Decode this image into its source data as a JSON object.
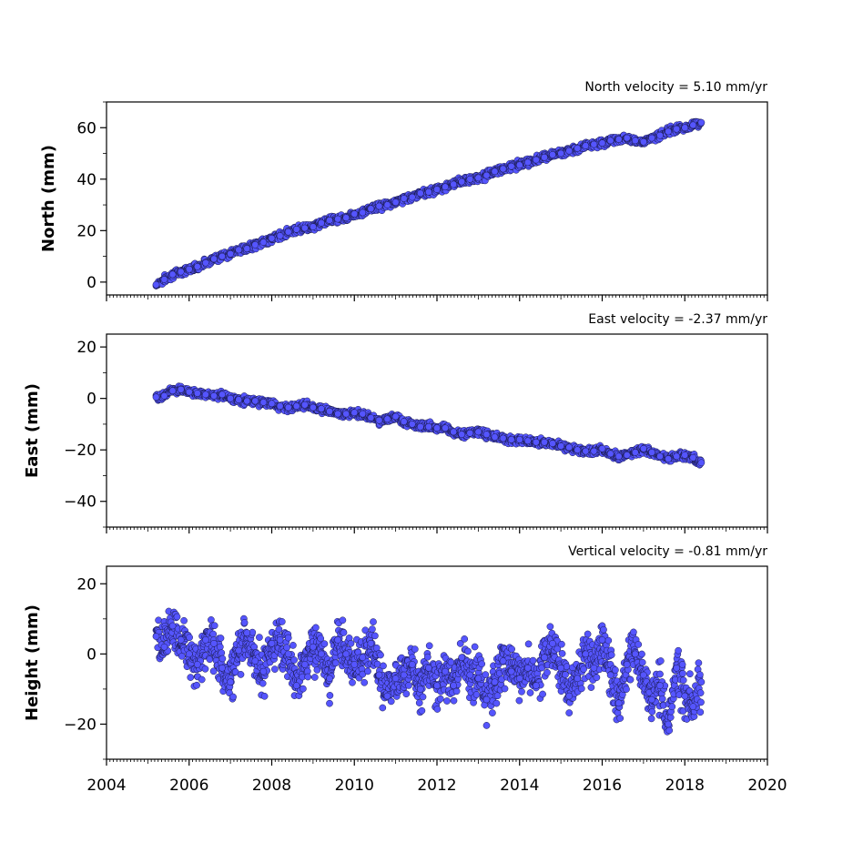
{
  "figure": {
    "point_fill": "#5555ff",
    "point_edge": "#1a1a4d",
    "x_ticks": [
      "2004",
      "2006",
      "2008",
      "2010",
      "2012",
      "2014",
      "2016",
      "2018",
      "2020"
    ]
  },
  "chart_data": [
    {
      "type": "scatter",
      "title": "North velocity = 5.10 mm/yr",
      "ylabel": "North (mm)",
      "xlim": [
        2004,
        2020
      ],
      "ylim": [
        -5,
        70
      ],
      "y_ticks": [
        "0",
        "20",
        "40",
        "60"
      ],
      "velocity_mm_per_yr": 5.1,
      "series": [
        {
          "x": [
            2005.2,
            2005.4,
            2005.6,
            2005.8,
            2006.0,
            2006.2,
            2006.4,
            2006.6,
            2006.8,
            2007.0,
            2007.2,
            2007.4,
            2007.6,
            2007.8,
            2008.0,
            2008.2,
            2008.4,
            2008.6,
            2008.8,
            2009.0,
            2009.2,
            2009.4,
            2009.6,
            2009.8,
            2010.0,
            2010.2,
            2010.4,
            2010.6,
            2010.8,
            2011.0,
            2011.2,
            2011.4,
            2011.6,
            2011.8,
            2012.0,
            2012.2,
            2012.4,
            2012.6,
            2012.8,
            2013.0,
            2013.2,
            2013.4,
            2013.6,
            2013.8,
            2014.0,
            2014.2,
            2014.4,
            2014.6,
            2014.8,
            2015.0,
            2015.2,
            2015.4,
            2015.6,
            2015.8,
            2016.0,
            2016.2,
            2016.4,
            2016.6,
            2016.8,
            2017.0,
            2017.2,
            2017.4,
            2017.6,
            2017.8,
            2018.0,
            2018.2,
            2018.4
          ],
          "y": [
            -1,
            1,
            3,
            4,
            5,
            6,
            7.5,
            9,
            10,
            11,
            12.5,
            13,
            14.5,
            15.5,
            17,
            18,
            19.5,
            20.5,
            21,
            21.5,
            23,
            24,
            24.5,
            25,
            26.5,
            27,
            28.5,
            29.5,
            30,
            31,
            32.5,
            33,
            34.5,
            35,
            36,
            37,
            38,
            39,
            40,
            40.5,
            41.5,
            43,
            44,
            45,
            45.5,
            46.5,
            47.5,
            48.5,
            49.5,
            50,
            51,
            52,
            53,
            53.5,
            54,
            55,
            55.5,
            56,
            55,
            54.5,
            56,
            57,
            58.5,
            59.5,
            60,
            61,
            62
          ]
        }
      ]
    },
    {
      "type": "scatter",
      "title": "East velocity = -2.37 mm/yr",
      "ylabel": "East (mm)",
      "xlim": [
        2004,
        2020
      ],
      "ylim": [
        -50,
        25
      ],
      "y_ticks": [
        "20",
        "0",
        "−20",
        "−40"
      ],
      "velocity_mm_per_yr": -2.37,
      "series": [
        {
          "x": [
            2005.2,
            2005.4,
            2005.6,
            2005.8,
            2006.0,
            2006.2,
            2006.4,
            2006.6,
            2006.8,
            2007.0,
            2007.2,
            2007.4,
            2007.6,
            2007.8,
            2008.0,
            2008.2,
            2008.4,
            2008.6,
            2008.8,
            2009.0,
            2009.2,
            2009.4,
            2009.6,
            2009.8,
            2010.0,
            2010.2,
            2010.4,
            2010.6,
            2010.8,
            2011.0,
            2011.2,
            2011.4,
            2011.6,
            2011.8,
            2012.0,
            2012.2,
            2012.4,
            2012.6,
            2012.8,
            2013.0,
            2013.2,
            2013.4,
            2013.6,
            2013.8,
            2014.0,
            2014.2,
            2014.4,
            2014.6,
            2014.8,
            2015.0,
            2015.2,
            2015.4,
            2015.6,
            2015.8,
            2016.0,
            2016.2,
            2016.4,
            2016.6,
            2016.8,
            2017.0,
            2017.2,
            2017.4,
            2017.6,
            2017.8,
            2018.0,
            2018.2,
            2018.4
          ],
          "y": [
            0.5,
            1,
            3,
            3.5,
            2.5,
            2,
            1.5,
            1,
            1.5,
            0,
            -0.5,
            -1,
            -1,
            -1.5,
            -2,
            -3,
            -3.5,
            -3,
            -2.5,
            -3.5,
            -4,
            -5,
            -6,
            -6,
            -5.5,
            -6,
            -7.5,
            -8.5,
            -8,
            -7,
            -9,
            -10,
            -11,
            -11,
            -11.5,
            -11.5,
            -13,
            -14,
            -13.5,
            -13,
            -14,
            -15,
            -15.5,
            -16,
            -16,
            -16.5,
            -17,
            -17,
            -17.5,
            -18.5,
            -19,
            -20,
            -20.5,
            -20.5,
            -19.5,
            -21.5,
            -22.5,
            -22,
            -21,
            -19.5,
            -21,
            -22.5,
            -23.5,
            -22.5,
            -22,
            -23,
            -25
          ]
        }
      ]
    },
    {
      "type": "scatter",
      "title": "Vertical velocity = -0.81 mm/yr",
      "ylabel": "Height (mm)",
      "xlim": [
        2004,
        2020
      ],
      "ylim": [
        -30,
        25
      ],
      "y_ticks": [
        "20",
        "0",
        "−20"
      ],
      "velocity_mm_per_yr": -0.81,
      "series": [
        {
          "x": [
            2005.2,
            2005.4,
            2005.6,
            2005.8,
            2006.0,
            2006.2,
            2006.4,
            2006.6,
            2006.8,
            2007.0,
            2007.2,
            2007.4,
            2007.6,
            2007.8,
            2008.0,
            2008.2,
            2008.4,
            2008.6,
            2008.8,
            2009.0,
            2009.2,
            2009.4,
            2009.6,
            2009.8,
            2010.0,
            2010.2,
            2010.4,
            2010.6,
            2010.8,
            2011.0,
            2011.2,
            2011.4,
            2011.6,
            2011.8,
            2012.0,
            2012.2,
            2012.4,
            2012.6,
            2012.8,
            2013.0,
            2013.2,
            2013.4,
            2013.6,
            2013.8,
            2014.0,
            2014.2,
            2014.4,
            2014.6,
            2014.8,
            2015.0,
            2015.2,
            2015.4,
            2015.6,
            2015.8,
            2016.0,
            2016.2,
            2016.4,
            2016.6,
            2016.8,
            2017.0,
            2017.2,
            2017.4,
            2017.6,
            2017.8,
            2018.0,
            2018.2,
            2018.4
          ],
          "y": [
            5,
            2,
            8,
            4,
            0,
            -3,
            4,
            3,
            -4,
            -8,
            1,
            6,
            -2,
            -5,
            3,
            4,
            0,
            -9,
            -3,
            2,
            0,
            -7,
            4,
            0,
            -3,
            -1,
            3,
            -6,
            -12,
            -7,
            -6,
            -3,
            -10,
            -4,
            -9,
            -5,
            -9,
            -1,
            -6,
            -7,
            -13,
            -8,
            -2,
            -5,
            -7,
            -4,
            -9,
            -1,
            3,
            -4,
            -12,
            -7,
            0,
            -4,
            4,
            -6,
            -14,
            -3,
            0,
            -6,
            -13,
            -9,
            -20,
            -4,
            -12,
            -15,
            -8
          ]
        }
      ]
    }
  ]
}
